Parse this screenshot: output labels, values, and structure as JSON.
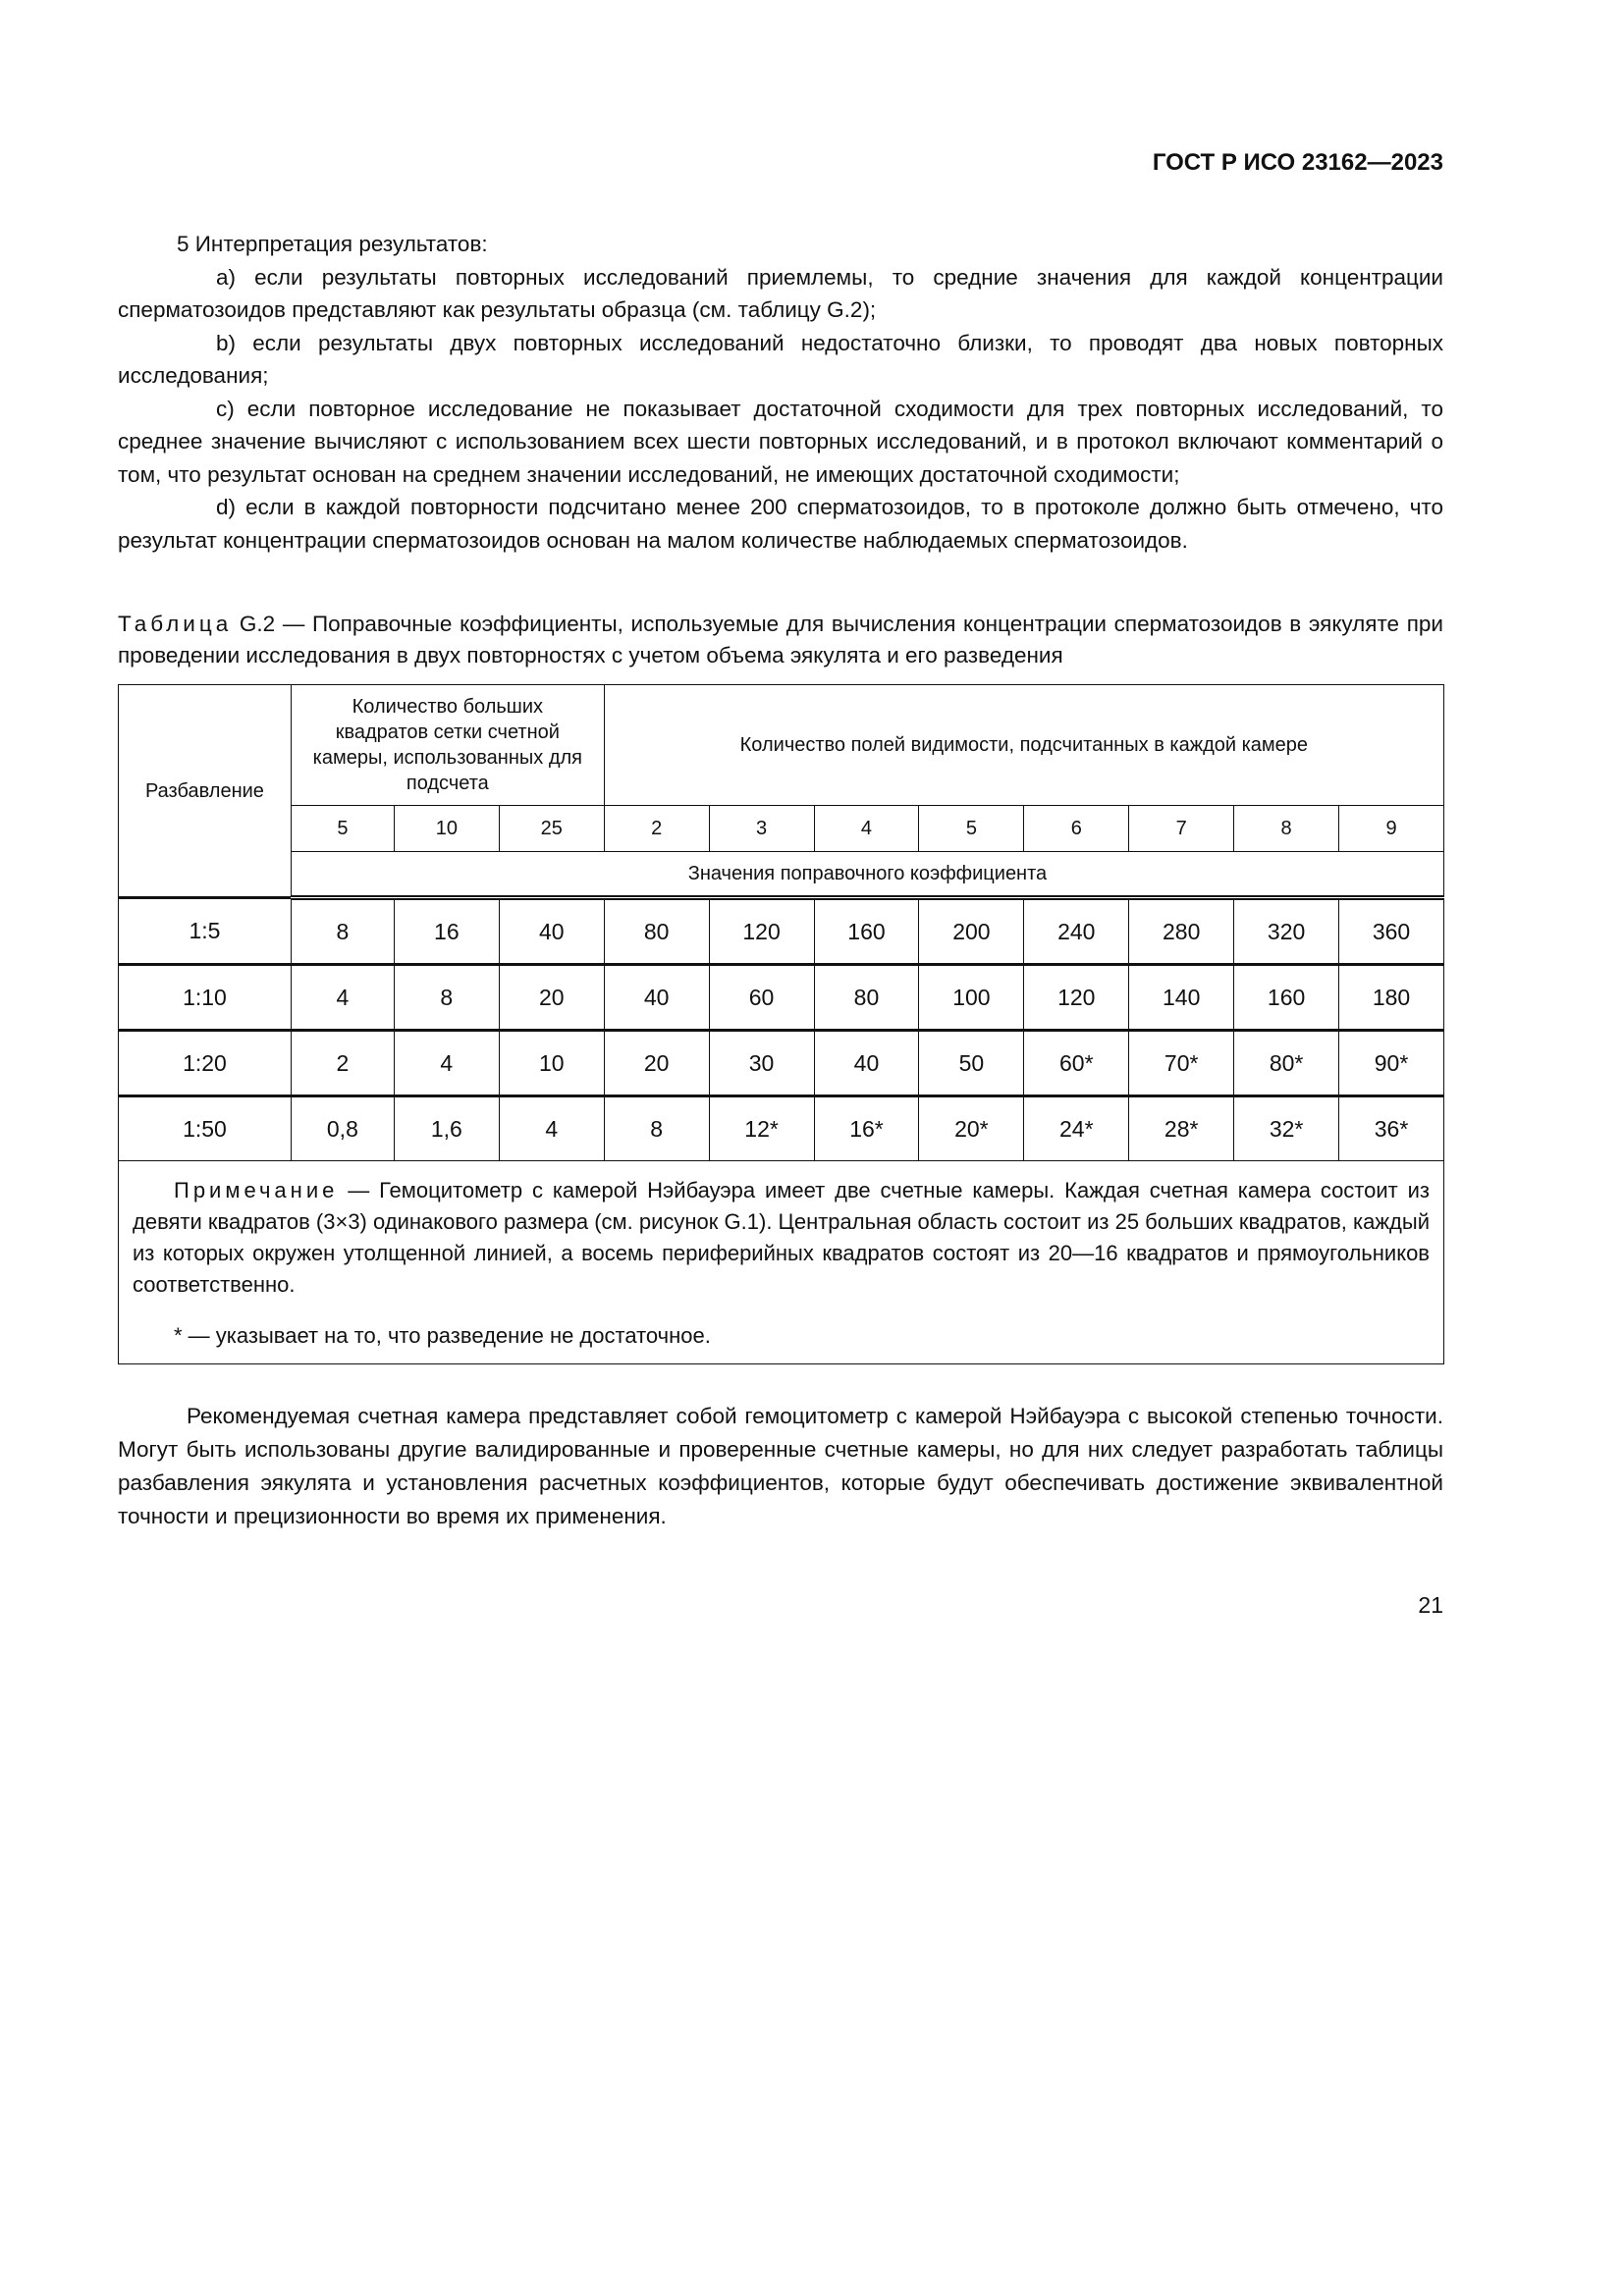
{
  "header": {
    "standard": "ГОСТ Р ИСО 23162—2023"
  },
  "section": {
    "heading": "5 Интерпретация результатов:",
    "items": [
      "a) если результаты повторных исследований приемлемы, то средние значения для каждой концентрации сперматозоидов представляют как результаты образца (см. таблицу G.2);",
      "b) если результаты двух повторных исследований недостаточно близки, то проводят два новых повторных исследования;",
      "c) если повторное исследование не показывает достаточной сходимости для трех повторных исследований, то среднее значение вычисляют с использованием всех шести повторных исследований, и в протокол включают комментарий о том, что результат основан на среднем значении исследований, не имеющих достаточной сходимости;",
      "d) если в каждой повторности подсчитано менее 200 сперматозоидов, то в протоколе должно быть отмечено, что результат концентрации сперматозоидов основан на малом количестве наблюдаемых сперматозоидов."
    ]
  },
  "table": {
    "caption_label": "Таблица",
    "caption_text": "G.2 — Поправочные коэффициенты, используемые для вычисления концентрации сперматозоидов в эякуляте при проведении исследования в двух повторностях с учетом объема эякулята и его разведения",
    "col_dilution": "Разбавление",
    "col_squares": "Количество больших квадратов сетки счетной камеры, использованных для подсчета",
    "col_fields": "Количество полей видимости, подсчитанных в каждой камере",
    "subheaders": [
      "5",
      "10",
      "25",
      "2",
      "3",
      "4",
      "5",
      "6",
      "7",
      "8",
      "9"
    ],
    "values_label": "Значения поправочного коэффициента",
    "rows": [
      {
        "dilution": "1:5",
        "values": [
          "8",
          "16",
          "40",
          "80",
          "120",
          "160",
          "200",
          "240",
          "280",
          "320",
          "360"
        ]
      },
      {
        "dilution": "1:10",
        "values": [
          "4",
          "8",
          "20",
          "40",
          "60",
          "80",
          "100",
          "120",
          "140",
          "160",
          "180"
        ]
      },
      {
        "dilution": "1:20",
        "values": [
          "2",
          "4",
          "10",
          "20",
          "30",
          "40",
          "50",
          "60*",
          "70*",
          "80*",
          "90*"
        ]
      },
      {
        "dilution": "1:50",
        "values": [
          "0,8",
          "1,6",
          "4",
          "8",
          "12*",
          "16*",
          "20*",
          "24*",
          "28*",
          "32*",
          "36*"
        ]
      }
    ],
    "note_label": "Примечание",
    "note_text": "— Гемоцитометр с камерой Нэйбауэра имеет две счетные камеры. Каждая счетная камера состоит из девяти квадратов (3×3) одинакового размера (см. рисунок G.1). Центральная область состоит из 25 больших квадратов, каждый из которых окружен утолщенной линией, а восемь периферийных квадратов состоят из 20—16 квадратов и прямоугольников соответственно.",
    "footnote": "*  — указывает на то, что разведение не достаточное."
  },
  "closing_paragraph": "Рекомендуемая счетная камера представляет собой гемоцитометр с камерой Нэйбауэра с высокой степенью точности. Могут быть использованы другие валидированные и проверенные счетные камеры, но для них следует разработать таблицы разбавления эякулята и установления расчетных коэффициентов, которые будут обеспечивать достижение эквивалентной точности и прецизионности во время их применения.",
  "page_number": "21"
}
